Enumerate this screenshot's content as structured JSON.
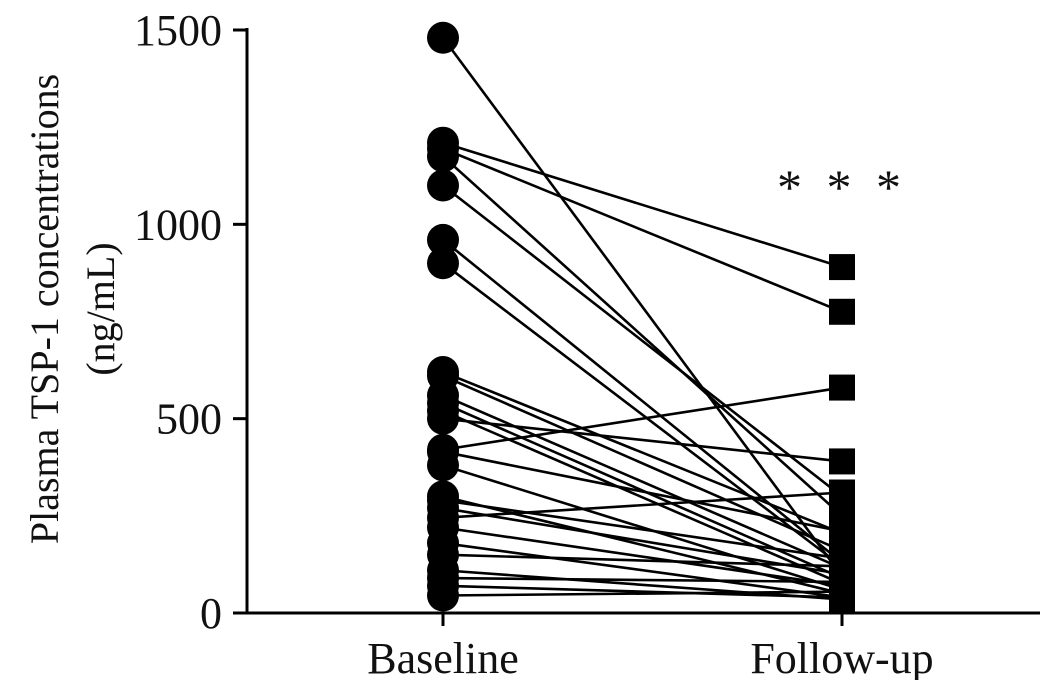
{
  "chart_data": {
    "type": "paired-dot",
    "ylabel_line1": "Plasma TSP-1 concentrations",
    "ylabel_line2": "(ng/mL)",
    "ylim": [
      0,
      1500
    ],
    "yticks": [
      0,
      500,
      1000,
      1500
    ],
    "categories": [
      "Baseline",
      "Follow-up"
    ],
    "annotation": "* * *",
    "annotation_x": "Follow-up",
    "annotation_y": 1130,
    "pairs": [
      [
        1480,
        95
      ],
      [
        1210,
        890
      ],
      [
        1195,
        775
      ],
      [
        1175,
        250
      ],
      [
        1100,
        300
      ],
      [
        960,
        130
      ],
      [
        900,
        120
      ],
      [
        620,
        205
      ],
      [
        610,
        160
      ],
      [
        560,
        115
      ],
      [
        540,
        90
      ],
      [
        520,
        75
      ],
      [
        500,
        390
      ],
      [
        420,
        580
      ],
      [
        415,
        210
      ],
      [
        380,
        60
      ],
      [
        300,
        50
      ],
      [
        290,
        140
      ],
      [
        270,
        100
      ],
      [
        245,
        310
      ],
      [
        220,
        70
      ],
      [
        180,
        40
      ],
      [
        150,
        120
      ],
      [
        110,
        35
      ],
      [
        90,
        80
      ],
      [
        70,
        40
      ],
      [
        45,
        55
      ]
    ]
  }
}
